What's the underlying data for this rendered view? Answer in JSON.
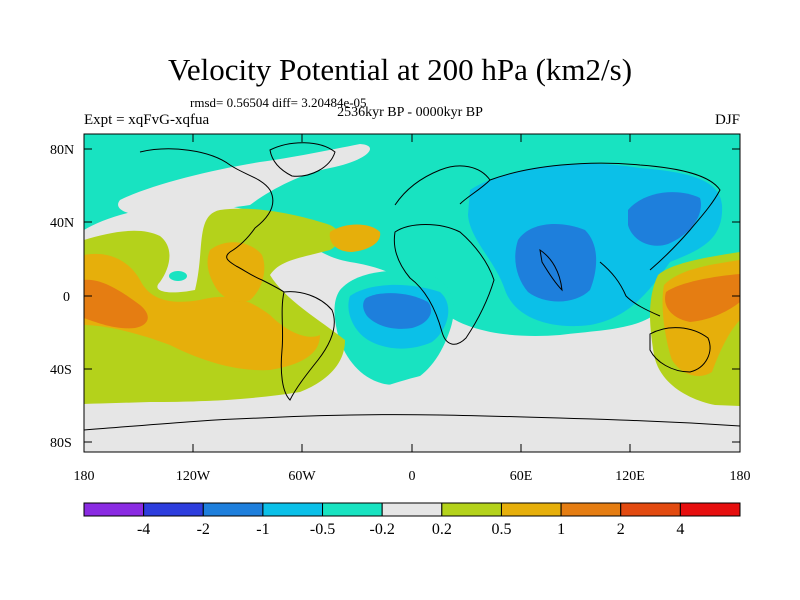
{
  "header": {
    "title": "Velocity Potential at 200 hPa (km2/s)",
    "stats": "rmsd= 0.56504 diff= 3.20484e-05",
    "period": "2536kyr BP - 0000kyr BP",
    "experiment": "Expt = xqFvG-xqfua",
    "season": "DJF"
  },
  "axes": {
    "lat_labels": [
      "80N",
      "40N",
      "0",
      "40S",
      "80S"
    ],
    "lon_labels": [
      "180",
      "120W",
      "60W",
      "0",
      "60E",
      "120E",
      "180"
    ]
  },
  "colorbar": {
    "colors": [
      "#8a2be2",
      "#2d3ddd",
      "#1e7fdc",
      "#0bc0e8",
      "#18e3c1",
      "#e6e6e6",
      "#b4d21b",
      "#e6af0b",
      "#e57d12",
      "#e24a10",
      "#e60e0e"
    ],
    "labels": [
      "-4",
      "-2",
      "-1",
      "-0.5",
      "-0.2",
      "0.2",
      "0.5",
      "1",
      "2",
      "4"
    ]
  },
  "fields": {
    "background": "#e6e6e6",
    "ocean_neg": "#18e3c1",
    "mid_neg": "#0bc0e8",
    "strong_neg": "#1e7fdc",
    "weak_pos": "#b4d21b",
    "mid_pos": "#e6af0b",
    "strong_pos": "#e57d12",
    "coast": "#000000"
  }
}
